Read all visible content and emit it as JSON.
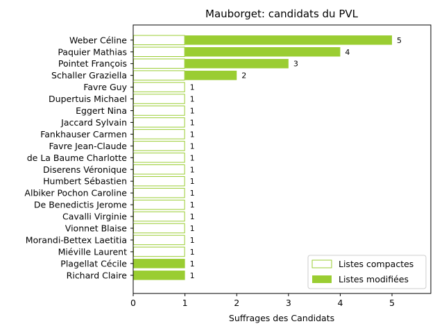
{
  "chart_data": {
    "type": "bar",
    "orientation": "horizontal",
    "title": "Mauborget: candidats du PVL",
    "xlabel": "Suffrages des Candidats",
    "ylabel": "",
    "xlim": [
      0,
      5.75
    ],
    "xticks": [
      0,
      1,
      2,
      3,
      4,
      5
    ],
    "grid": false,
    "legend_position": "bottom-right",
    "colors": {
      "bar": "#9acd32",
      "text": "#000000",
      "axis": "#000000"
    },
    "categories": [
      "Weber Céline",
      "Paquier Mathias",
      "Pointet François",
      "Schaller Graziella",
      "Favre Guy",
      "Dupertuis Michael",
      "Eggert Nina",
      "Jaccard Sylvain",
      "Fankhauser Carmen",
      "Favre Jean-Claude",
      "de La Baume Charlotte",
      "Diserens Véronique",
      "Humbert Sébastien",
      "Albiker Pochon Caroline",
      "De Benedictis Jerome",
      "Cavalli Virginie",
      "Vionnet Blaise",
      "Morandi-Bettex Laetitia",
      "Miéville Laurent",
      "Plagellat Cécile",
      "Richard Claire"
    ],
    "series": [
      {
        "name": "Listes compactes",
        "style": "outline",
        "values": [
          1,
          1,
          1,
          1,
          1,
          1,
          1,
          1,
          1,
          1,
          1,
          1,
          1,
          1,
          1,
          1,
          1,
          1,
          1,
          0,
          0
        ]
      },
      {
        "name": "Listes modifiées",
        "style": "filled",
        "values": [
          4,
          3,
          2,
          1,
          0,
          0,
          0,
          0,
          0,
          0,
          0,
          0,
          0,
          0,
          0,
          0,
          0,
          0,
          0,
          1,
          1
        ]
      }
    ],
    "totals": [
      5,
      4,
      3,
      2,
      1,
      1,
      1,
      1,
      1,
      1,
      1,
      1,
      1,
      1,
      1,
      1,
      1,
      1,
      1,
      1,
      1
    ]
  }
}
